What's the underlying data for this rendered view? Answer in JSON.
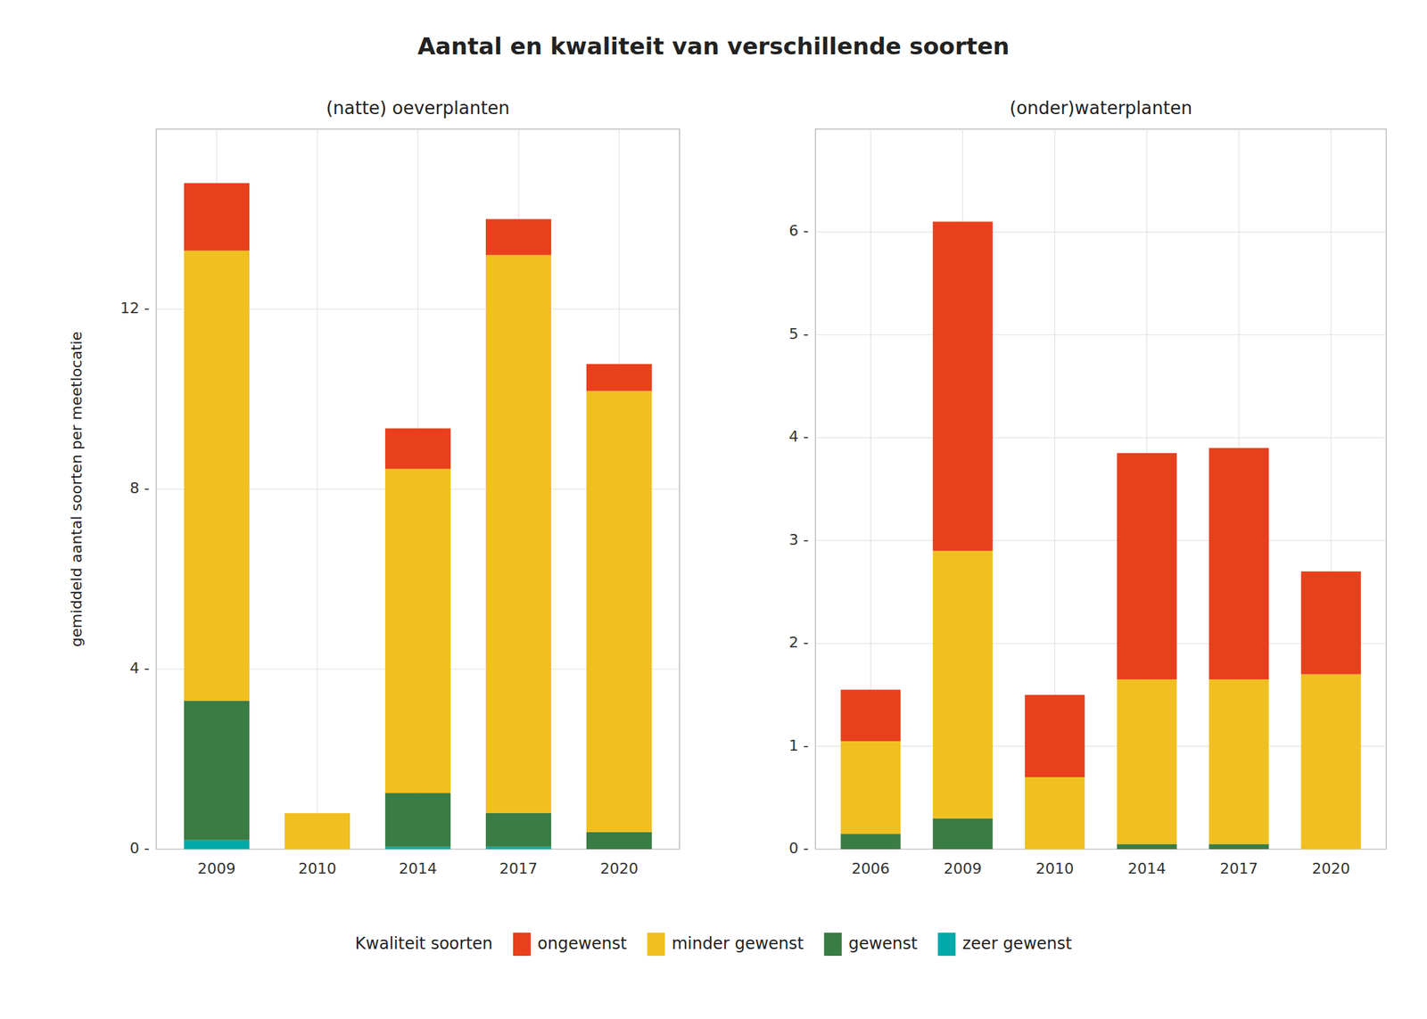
{
  "title": "Aantal en kwaliteit van verschillende soorten",
  "legend_title": "Kwaliteit soorten",
  "chart_data": [
    {
      "type": "bar",
      "stacked": true,
      "title": "(natte) oeverplanten",
      "ylabel": "gemiddeld aantal soorten per meetlocatie",
      "categories": [
        "2009",
        "2010",
        "2014",
        "2017",
        "2020"
      ],
      "series": [
        {
          "name": "zeer gewenst",
          "color": "#00AAAA",
          "values": [
            0.2,
            0.0,
            0.05,
            0.05,
            0.0
          ]
        },
        {
          "name": "gewenst",
          "color": "#3A7D44",
          "values": [
            3.1,
            0.0,
            1.2,
            0.75,
            0.38
          ]
        },
        {
          "name": "minder gewenst",
          "color": "#F0C020",
          "values": [
            10.0,
            0.8,
            7.2,
            12.4,
            9.8
          ]
        },
        {
          "name": "ongewenst",
          "color": "#E8401C",
          "values": [
            1.5,
            0.0,
            0.9,
            0.8,
            0.6
          ]
        }
      ],
      "ylim": [
        0,
        16
      ],
      "yticks": [
        {
          "value": 0,
          "label": "0 -"
        },
        {
          "value": 4,
          "label": "4 -"
        },
        {
          "value": 8,
          "label": "8 -"
        },
        {
          "value": 12,
          "label": "12 -"
        }
      ],
      "grid": true,
      "legend": "bottom"
    },
    {
      "type": "bar",
      "stacked": true,
      "title": "(onder)waterplanten",
      "categories": [
        "2006",
        "2009",
        "2010",
        "2014",
        "2017",
        "2020"
      ],
      "series": [
        {
          "name": "zeer gewenst",
          "color": "#00AAAA",
          "values": [
            0.0,
            0.0,
            0.0,
            0.0,
            0.0,
            0.0
          ]
        },
        {
          "name": "gewenst",
          "color": "#3A7D44",
          "values": [
            0.15,
            0.3,
            0.0,
            0.05,
            0.05,
            0.0
          ]
        },
        {
          "name": "minder gewenst",
          "color": "#F0C020",
          "values": [
            0.9,
            2.6,
            0.7,
            1.6,
            1.6,
            1.7
          ]
        },
        {
          "name": "ongewenst",
          "color": "#E8401C",
          "values": [
            0.5,
            3.2,
            0.8,
            2.2,
            2.25,
            1.0
          ]
        }
      ],
      "ylim": [
        0,
        7
      ],
      "yticks": [
        {
          "value": 0,
          "label": "0 -"
        },
        {
          "value": 1,
          "label": "1 -"
        },
        {
          "value": 2,
          "label": "2 -"
        },
        {
          "value": 3,
          "label": "3 -"
        },
        {
          "value": 4,
          "label": "4 -"
        },
        {
          "value": 5,
          "label": "5 -"
        },
        {
          "value": 6,
          "label": "6 -"
        }
      ],
      "grid": true
    }
  ]
}
